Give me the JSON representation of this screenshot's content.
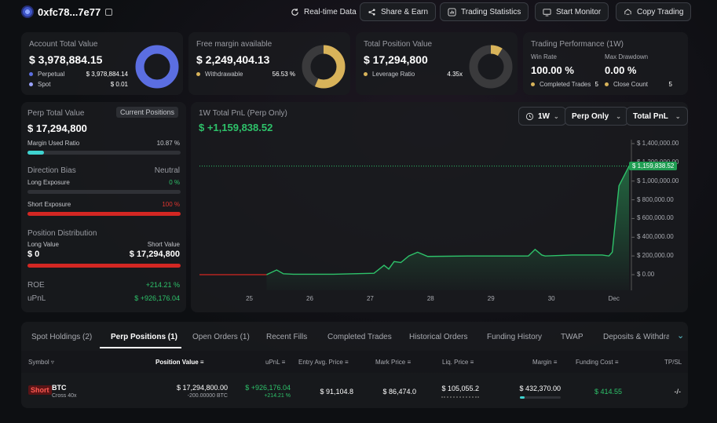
{
  "header": {
    "address": "0xfc78...7e77",
    "buttons": [
      "Real-time Data",
      "Share & Earn",
      "Trading Statistics",
      "Start Monitor",
      "Copy Trading"
    ]
  },
  "account": {
    "label": "Account Total Value",
    "value": "$ 3,978,884.15",
    "perp_label": "Perpetual",
    "perp_value": "$ 3,978,884.14",
    "spot_label": "Spot",
    "spot_value": "$ 0.01",
    "perp_color": "#5b6ee1",
    "spot_color": "#9aa3ff"
  },
  "margin": {
    "label": "Free margin available",
    "value": "$ 2,249,404.13",
    "withdraw_label": "Withdrawable",
    "withdraw_pct": "56.53 %",
    "withdraw_fraction": 0.5653,
    "color": "#d8b35a"
  },
  "position": {
    "label": "Total Position Value",
    "value": "$ 17,294,800",
    "leverage_label": "Leverage Ratio",
    "leverage_value": "4.35x",
    "fraction": 0.09,
    "color": "#d8b35a"
  },
  "performance": {
    "label": "Trading Performance (1W)",
    "winrate_label": "Win Rate",
    "winrate_value": "100.00 %",
    "drawdown_label": "Max Drawdown",
    "drawdown_value": "0.00 %",
    "completed_label": "Completed Trades",
    "completed_value": "5",
    "close_label": "Close Count",
    "close_value": "5"
  },
  "perp": {
    "label": "Perp Total Value",
    "tag": "Current Positions",
    "value": "$ 17,294,800",
    "margin_ratio_label": "Margin Used Ratio",
    "margin_ratio_value": "10.87 %",
    "margin_ratio_fraction": 0.1087,
    "bias_label": "Direction Bias",
    "bias_value": "Neutral",
    "long_exp_label": "Long Exposure",
    "long_exp_value": "0 %",
    "short_exp_label": "Short Exposure",
    "short_exp_value": "100 %",
    "dist_label": "Position Distribution",
    "long_val_label": "Long Value",
    "long_val": "$ 0",
    "short_val_label": "Short Value",
    "short_val": "$ 17,294,800",
    "roe_label": "ROE",
    "roe_value": "+214.21 %",
    "upnl_label": "uPnL",
    "upnl_value": "$ +926,176.04"
  },
  "pnl": {
    "label": "1W Total PnL (Perp Only)",
    "value": "$ +1,159,838.52",
    "selects": [
      "1W",
      "Perp Only",
      "Total PnL"
    ],
    "current_tag": "$ 1,159,838.52"
  },
  "chart_data": {
    "type": "line",
    "title": "1W Total PnL (Perp Only)",
    "x_ticks": [
      "25",
      "26",
      "27",
      "28",
      "29",
      "30",
      "Dec"
    ],
    "y_ticks": [
      "$ 1,400,000.00",
      "$ 1,200,000.00",
      "$ 1,000,000.00",
      "$ 800,000.00",
      "$ 600,000.00",
      "$ 400,000.00",
      "$ 200,000.00",
      "$ 0.00"
    ],
    "ylim": [
      0,
      1400000
    ],
    "x": [
      0,
      1.0,
      1.15,
      1.25,
      1.4,
      2.0,
      2.6,
      2.75,
      2.82,
      2.9,
      3.0,
      3.12,
      3.25,
      3.4,
      4.0,
      4.1,
      4.9,
      5.0,
      5.1,
      5.15,
      5.55,
      6.0,
      6.1,
      6.15,
      6.25,
      6.4
    ],
    "values": [
      0,
      0,
      50000,
      10000,
      5000,
      5000,
      15000,
      100000,
      60000,
      140000,
      130000,
      200000,
      240000,
      195000,
      200000,
      200000,
      200000,
      270000,
      210000,
      200000,
      210000,
      210000,
      200000,
      240000,
      950000,
      1159838.52
    ],
    "last_value": 1159838.52
  },
  "tabs": [
    "Spot Holdings (2)",
    "Perp Positions (1)",
    "Open Orders (1)",
    "Recent Fills",
    "Completed Trades",
    "Historical Orders",
    "Funding History",
    "TWAP",
    "Deposits & Withdraw"
  ],
  "table": {
    "headers": [
      "Symbol",
      "Position Value",
      "uPnL",
      "Entry Avg. Price",
      "Mark Price",
      "Liq. Price",
      "Margin",
      "Funding Cost",
      "TP/SL"
    ],
    "row": {
      "side": "Short",
      "symbol": "BTC",
      "mode": "Cross 40x",
      "pos_value": "$ 17,294,800.00",
      "pos_size": "-200.00000 BTC",
      "upnl": "$ +926,176.04",
      "upnl_pct": "+214.21 %",
      "entry": "$ 91,104.8",
      "mark": "$ 86,474.0",
      "liq": "$ 105,055.2",
      "margin": "$ 432,370.00",
      "funding": "$ 414.55",
      "tpsl": "-/-"
    }
  },
  "colors": {
    "green": "#2ec26a",
    "red": "#e0352f"
  }
}
